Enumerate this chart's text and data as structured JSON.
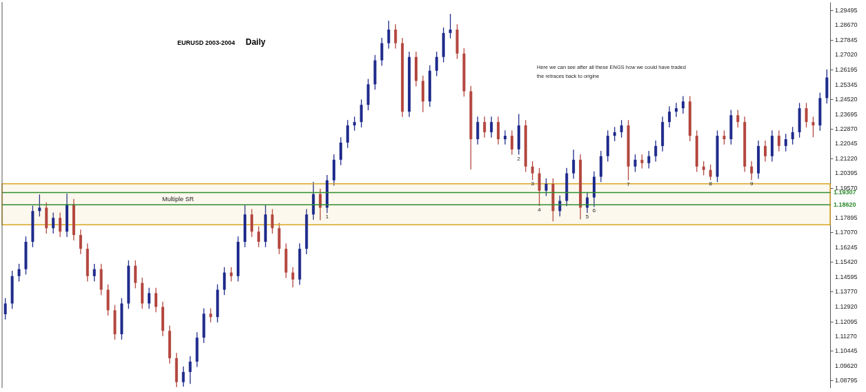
{
  "chart_data": {
    "type": "candlestick",
    "title": "EURUSD 2003-2004",
    "subtitle": "Daily",
    "annotations": [
      "Here we can see after all these ENGS how we could have traded",
      "the retraces back to origine",
      "Multiple SR"
    ],
    "categories": [
      null,
      null,
      null,
      null,
      null,
      null,
      null,
      null,
      null,
      null,
      null,
      null,
      null,
      null,
      null,
      null,
      null,
      null,
      null,
      null,
      null,
      null,
      null,
      null,
      null,
      null,
      null,
      null,
      null,
      null,
      null,
      null,
      null,
      null,
      null,
      null,
      null,
      null,
      null,
      null,
      null,
      null,
      null,
      null,
      null,
      null,
      null,
      null,
      null,
      null,
      null,
      null,
      null,
      null,
      null,
      null,
      null,
      null,
      null,
      null,
      null,
      null,
      null,
      null,
      null,
      null,
      null,
      null,
      null,
      null,
      null,
      null,
      null,
      null,
      null,
      null,
      null,
      null,
      null,
      null,
      null,
      null,
      null,
      null,
      null,
      null,
      null,
      null,
      null,
      null,
      null,
      null,
      null,
      null,
      null,
      null,
      null,
      null,
      null,
      null,
      null,
      null,
      null,
      null,
      null,
      null,
      null,
      null,
      null,
      null,
      null,
      null,
      null,
      null,
      null,
      null,
      null,
      null,
      null,
      null,
      null
    ],
    "ohlc": [
      [
        1.125,
        1.134,
        1.122,
        1.131
      ],
      [
        1.131,
        1.1493,
        1.128,
        1.1463
      ],
      [
        1.1463,
        1.1532,
        1.1433,
        1.1502
      ],
      [
        1.1502,
        1.1685,
        1.1472,
        1.1655
      ],
      [
        1.1655,
        1.1857,
        1.1625,
        1.1827
      ],
      [
        1.1827,
        1.192,
        1.1797,
        1.1846
      ],
      [
        1.1846,
        1.1876,
        1.1701,
        1.1731
      ],
      [
        1.1731,
        1.1819,
        1.1701,
        1.1789
      ],
      [
        1.1789,
        1.1819,
        1.1682,
        1.1712
      ],
      [
        1.1712,
        1.1925,
        1.1682,
        1.1865
      ],
      [
        1.1865,
        1.1895,
        1.1663,
        1.1693
      ],
      [
        1.1693,
        1.1723,
        1.1586,
        1.1616
      ],
      [
        1.1616,
        1.1646,
        1.1433,
        1.1463
      ],
      [
        1.1463,
        1.1532,
        1.1433,
        1.1502
      ],
      [
        1.1502,
        1.1532,
        1.1357,
        1.1387
      ],
      [
        1.1387,
        1.1417,
        1.1242,
        1.1272
      ],
      [
        1.1272,
        1.1302,
        1.1108,
        1.1138
      ],
      [
        1.1138,
        1.134,
        1.1108,
        1.131
      ],
      [
        1.131,
        1.1551,
        1.128,
        1.1521
      ],
      [
        1.1521,
        1.1551,
        1.1395,
        1.1425
      ],
      [
        1.1425,
        1.1455,
        1.128,
        1.131
      ],
      [
        1.131,
        1.1398,
        1.128,
        1.1368
      ],
      [
        1.1368,
        1.1398,
        1.1261,
        1.1291
      ],
      [
        1.1291,
        1.1321,
        1.1127,
        1.1157
      ],
      [
        1.1157,
        1.1187,
        1.0974,
        1.1004
      ],
      [
        1.1004,
        1.1034,
        1.0842,
        1.087
      ],
      [
        1.087,
        1.0957,
        1.0845,
        1.0927
      ],
      [
        1.0927,
        1.1015,
        1.086,
        1.0985
      ],
      [
        1.0985,
        1.1149,
        1.0955,
        1.1119
      ],
      [
        1.1119,
        1.1283,
        1.1089,
        1.1253
      ],
      [
        1.1253,
        1.1283,
        1.1204,
        1.1234
      ],
      [
        1.1234,
        1.1417,
        1.1204,
        1.1387
      ],
      [
        1.1387,
        1.1513,
        1.1357,
        1.1483
      ],
      [
        1.1483,
        1.1513,
        1.1433,
        1.1463
      ],
      [
        1.1463,
        1.1685,
        1.1433,
        1.1655
      ],
      [
        1.1655,
        1.186,
        1.1625,
        1.1808
      ],
      [
        1.1808,
        1.1838,
        1.1682,
        1.1712
      ],
      [
        1.1712,
        1.1742,
        1.1625,
        1.1655
      ],
      [
        1.1655,
        1.186,
        1.1625,
        1.1808
      ],
      [
        1.1808,
        1.1838,
        1.1701,
        1.1731
      ],
      [
        1.1731,
        1.1761,
        1.1586,
        1.1616
      ],
      [
        1.1616,
        1.1646,
        1.1453,
        1.1483
      ],
      [
        1.1483,
        1.1513,
        1.14,
        1.1444
      ],
      [
        1.1444,
        1.1646,
        1.1414,
        1.1616
      ],
      [
        1.1616,
        1.1838,
        1.1586,
        1.1808
      ],
      [
        1.1808,
        1.199,
        1.1778,
        1.1922
      ],
      [
        1.1922,
        1.1952,
        1.1775,
        1.1846
      ],
      [
        1.1846,
        1.2029,
        1.1816,
        1.1999
      ],
      [
        1.1999,
        1.2144,
        1.1969,
        1.2114
      ],
      [
        1.2114,
        1.224,
        1.2084,
        1.221
      ],
      [
        1.221,
        1.2336,
        1.218,
        1.2306
      ],
      [
        1.2306,
        1.2355,
        1.2276,
        1.2325
      ],
      [
        1.2325,
        1.2451,
        1.2295,
        1.2421
      ],
      [
        1.2421,
        1.2566,
        1.2391,
        1.2536
      ],
      [
        1.2536,
        1.27,
        1.2506,
        1.267
      ],
      [
        1.267,
        1.2796,
        1.264,
        1.2766
      ],
      [
        1.2766,
        1.2892,
        1.2736,
        1.2842
      ],
      [
        1.2842,
        1.2872,
        1.2736,
        1.2766
      ],
      [
        1.2766,
        1.2796,
        1.2353,
        1.2383
      ],
      [
        1.2383,
        1.2719,
        1.2353,
        1.2689
      ],
      [
        1.2689,
        1.2719,
        1.2525,
        1.2555
      ],
      [
        1.2555,
        1.2585,
        1.238,
        1.244
      ],
      [
        1.244,
        1.2642,
        1.241,
        1.2612
      ],
      [
        1.2612,
        1.2719,
        1.2582,
        1.2689
      ],
      [
        1.2689,
        1.2853,
        1.2659,
        1.2823
      ],
      [
        1.2823,
        1.293,
        1.2793,
        1.2842
      ],
      [
        1.2842,
        1.2872,
        1.2678,
        1.2708
      ],
      [
        1.2708,
        1.2738,
        1.2467,
        1.2497
      ],
      [
        1.2497,
        1.2527,
        1.206,
        1.2229
      ],
      [
        1.2229,
        1.2355,
        1.2199,
        1.2325
      ],
      [
        1.2325,
        1.2355,
        1.2238,
        1.2268
      ],
      [
        1.2268,
        1.2355,
        1.2238,
        1.2325
      ],
      [
        1.2325,
        1.2355,
        1.2199,
        1.2229
      ],
      [
        1.2229,
        1.2278,
        1.2199,
        1.2248
      ],
      [
        1.2248,
        1.2278,
        1.2142,
        1.2172
      ],
      [
        1.2172,
        1.237,
        1.2142,
        1.2306
      ],
      [
        1.2306,
        1.2336,
        1.2046,
        1.2076
      ],
      [
        1.2076,
        1.2106,
        1.2,
        1.2038
      ],
      [
        1.2038,
        1.2068,
        1.1855,
        1.1941
      ],
      [
        1.1941,
        1.201,
        1.1911,
        1.198
      ],
      [
        1.198,
        1.201,
        1.1769,
        1.1827
      ],
      [
        1.1827,
        1.1914,
        1.1797,
        1.1884
      ],
      [
        1.1884,
        1.2068,
        1.1854,
        1.2038
      ],
      [
        1.2038,
        1.217,
        1.2008,
        1.2114
      ],
      [
        1.2114,
        1.2144,
        1.178,
        1.1846
      ],
      [
        1.1846,
        1.1933,
        1.1816,
        1.1903
      ],
      [
        1.1903,
        1.2049,
        1.185,
        1.2019
      ],
      [
        1.2019,
        1.2164,
        1.1989,
        1.2134
      ],
      [
        1.2134,
        1.2278,
        1.2104,
        1.2248
      ],
      [
        1.2248,
        1.2298,
        1.2218,
        1.2268
      ],
      [
        1.2268,
        1.2336,
        1.2238,
        1.2306
      ],
      [
        1.2306,
        1.2336,
        1.1999,
        1.2076
      ],
      [
        1.2076,
        1.2144,
        1.2046,
        1.2114
      ],
      [
        1.2114,
        1.2144,
        1.2065,
        1.2095
      ],
      [
        1.2095,
        1.2164,
        1.2065,
        1.2134
      ],
      [
        1.2134,
        1.2221,
        1.2104,
        1.2191
      ],
      [
        1.2191,
        1.2355,
        1.2161,
        1.2325
      ],
      [
        1.2325,
        1.2413,
        1.2295,
        1.2383
      ],
      [
        1.2383,
        1.2432,
        1.2353,
        1.2402
      ],
      [
        1.2402,
        1.247,
        1.2372,
        1.244
      ],
      [
        1.244,
        1.247,
        1.2218,
        1.2248
      ],
      [
        1.2248,
        1.2278,
        1.2046,
        1.2076
      ],
      [
        1.2076,
        1.2106,
        1.2027,
        1.2057
      ],
      [
        1.2057,
        1.2087,
        1.2,
        1.2019
      ],
      [
        1.2019,
        1.2278,
        1.1989,
        1.2248
      ],
      [
        1.2248,
        1.2278,
        1.2199,
        1.2229
      ],
      [
        1.2229,
        1.2393,
        1.2199,
        1.2363
      ],
      [
        1.2363,
        1.2393,
        1.2295,
        1.2325
      ],
      [
        1.2325,
        1.2355,
        1.2046,
        1.2076
      ],
      [
        1.2076,
        1.2106,
        1.2,
        1.2038
      ],
      [
        1.2038,
        1.2221,
        1.2008,
        1.2191
      ],
      [
        1.2191,
        1.2221,
        1.2104,
        1.2134
      ],
      [
        1.2134,
        1.2278,
        1.2104,
        1.2248
      ],
      [
        1.2248,
        1.2278,
        1.2161,
        1.2191
      ],
      [
        1.2191,
        1.2259,
        1.2161,
        1.2229
      ],
      [
        1.2229,
        1.2298,
        1.2199,
        1.2268
      ],
      [
        1.2268,
        1.2432,
        1.2238,
        1.2402
      ],
      [
        1.2402,
        1.2432,
        1.2295,
        1.2325
      ],
      [
        1.2325,
        1.2355,
        1.224,
        1.2306
      ],
      [
        1.2306,
        1.2489,
        1.2276,
        1.2459
      ],
      [
        1.2459,
        1.2619,
        1.2429,
        1.2574
      ]
    ],
    "colors": [
      "#1f2b8c",
      "#1f2b8c",
      "#1f2b8c",
      "#1f2b8c",
      "#1f2b8c",
      "#1f2b8c",
      "#b3473f",
      "#1f2b8c",
      "#b3473f",
      "#1f2b8c",
      "#b3473f",
      "#b3473f",
      "#b3473f",
      "#1f2b8c",
      "#b3473f",
      "#b3473f",
      "#b3473f",
      "#1f2b8c",
      "#1f2b8c",
      "#b3473f",
      "#b3473f",
      "#1f2b8c",
      "#b3473f",
      "#b3473f",
      "#b3473f",
      "#b3473f",
      "#1f2b8c",
      "#1f2b8c",
      "#1f2b8c",
      "#1f2b8c",
      "#b3473f",
      "#1f2b8c",
      "#1f2b8c",
      "#b3473f",
      "#1f2b8c",
      "#1f2b8c",
      "#b3473f",
      "#b3473f",
      "#1f2b8c",
      "#b3473f",
      "#b3473f",
      "#b3473f",
      "#b3473f",
      "#1f2b8c",
      "#1f2b8c",
      "#1f2b8c",
      "#b3473f",
      "#1f2b8c",
      "#1f2b8c",
      "#1f2b8c",
      "#1f2b8c",
      "#1f2b8c",
      "#1f2b8c",
      "#1f2b8c",
      "#1f2b8c",
      "#1f2b8c",
      "#1f2b8c",
      "#b3473f",
      "#b3473f",
      "#1f2b8c",
      "#b3473f",
      "#b3473f",
      "#1f2b8c",
      "#1f2b8c",
      "#1f2b8c",
      "#1f2b8c",
      "#b3473f",
      "#b3473f",
      "#b3473f",
      "#1f2b8c",
      "#b3473f",
      "#1f2b8c",
      "#b3473f",
      "#1f2b8c",
      "#b3473f",
      "#1f2b8c",
      "#b3473f",
      "#b3473f",
      "#b3473f",
      "#1f2b8c",
      "#b3473f",
      "#1f2b8c",
      "#1f2b8c",
      "#1f2b8c",
      "#b3473f",
      "#1f2b8c",
      "#1f2b8c",
      "#1f2b8c",
      "#1f2b8c",
      "#1f2b8c",
      "#1f2b8c",
      "#b3473f",
      "#1f2b8c",
      "#b3473f",
      "#1f2b8c",
      "#1f2b8c",
      "#1f2b8c",
      "#1f2b8c",
      "#1f2b8c",
      "#1f2b8c",
      "#b3473f",
      "#b3473f",
      "#b3473f",
      "#b3473f",
      "#1f2b8c",
      "#b3473f",
      "#1f2b8c",
      "#b3473f",
      "#b3473f",
      "#b3473f",
      "#1f2b8c",
      "#b3473f",
      "#1f2b8c",
      "#b3473f",
      "#1f2b8c",
      "#1f2b8c",
      "#1f2b8c",
      "#b3473f",
      "#b3473f",
      "#1f2b8c",
      "#1f2b8c"
    ],
    "value_labels": [
      null,
      null,
      null,
      null,
      null,
      null,
      null,
      null,
      null,
      null,
      null,
      null,
      null,
      null,
      null,
      null,
      null,
      null,
      null,
      null,
      null,
      null,
      null,
      null,
      null,
      null,
      null,
      null,
      null,
      null,
      null,
      null,
      null,
      null,
      null,
      null,
      null,
      null,
      null,
      null,
      null,
      null,
      null,
      null,
      null,
      null,
      null,
      "1",
      null,
      null,
      null,
      null,
      null,
      null,
      null,
      null,
      null,
      null,
      null,
      null,
      null,
      null,
      null,
      null,
      null,
      null,
      null,
      null,
      null,
      null,
      null,
      null,
      null,
      null,
      null,
      "2",
      null,
      "3",
      "4",
      null,
      null,
      null,
      null,
      null,
      null,
      "5",
      "6",
      null,
      null,
      null,
      null,
      "7",
      null,
      null,
      null,
      null,
      null,
      null,
      null,
      null,
      null,
      null,
      null,
      "8",
      null,
      null,
      null,
      null,
      null,
      "9",
      null,
      null,
      null,
      null,
      null,
      null,
      null,
      null,
      null,
      null,
      null
    ],
    "ylim": [
      1.0838,
      1.2996
    ],
    "yticks": [
      {
        "value": 1.29495,
        "label": "1.29495"
      },
      {
        "value": 1.2867,
        "label": "1.28670"
      },
      {
        "value": 1.27845,
        "label": "1.27845"
      },
      {
        "value": 1.2702,
        "label": "1.27020"
      },
      {
        "value": 1.26195,
        "label": "1.26195"
      },
      {
        "value": 1.25345,
        "label": "1.25345"
      },
      {
        "value": 1.2452,
        "label": "1.24520"
      },
      {
        "value": 1.23695,
        "label": "1.23695"
      },
      {
        "value": 1.2287,
        "label": "1.22870"
      },
      {
        "value": 1.22045,
        "label": "1.22045"
      },
      {
        "value": 1.2122,
        "label": "1.21220"
      },
      {
        "value": 1.20395,
        "label": "1.20395"
      },
      {
        "value": 1.1957,
        "label": "1.19570"
      },
      {
        "value": 1.17895,
        "label": "1.17895"
      },
      {
        "value": 1.1707,
        "label": "1.17070"
      },
      {
        "value": 1.16245,
        "label": "1.16245"
      },
      {
        "value": 1.1542,
        "label": "1.15420"
      },
      {
        "value": 1.14595,
        "label": "1.14595"
      },
      {
        "value": 1.1377,
        "label": "1.13770"
      },
      {
        "value": 1.1292,
        "label": "1.12920"
      },
      {
        "value": 1.12095,
        "label": "1.12095"
      },
      {
        "value": 1.1127,
        "label": "1.11270"
      },
      {
        "value": 1.10445,
        "label": "1.10445"
      },
      {
        "value": 1.0962,
        "label": "1.09620"
      },
      {
        "value": 1.08795,
        "label": "1.08795"
      }
    ],
    "tick_labels": "y",
    "ref_lines": [
      {
        "axis": "y",
        "value": 1.19307,
        "label": "1.19307",
        "color": "#2e8b2e"
      },
      {
        "axis": "y",
        "value": 1.1862,
        "label": "1.18620",
        "color": "#2e8b2e"
      }
    ],
    "bands": [
      {
        "axis": "y",
        "from": 1.175,
        "to": 1.198,
        "color": "#d9a520"
      }
    ]
  }
}
